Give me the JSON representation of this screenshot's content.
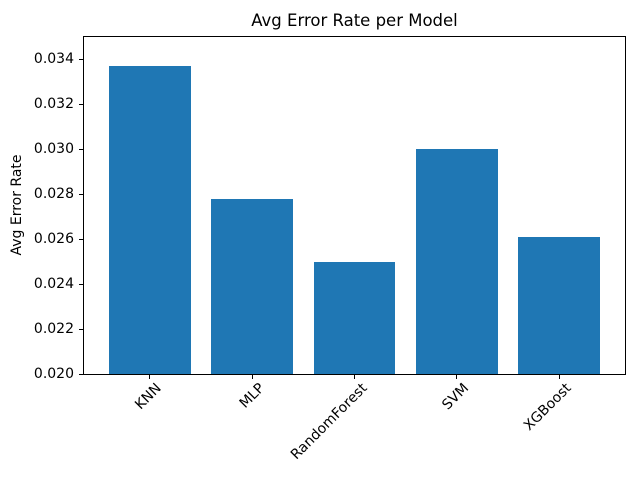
{
  "window": {
    "background_color": "#ffffff"
  },
  "chart_data": {
    "type": "bar",
    "title": "Avg Error Rate per Model",
    "xlabel": "",
    "ylabel": "Avg Error Rate",
    "categories": [
      "KNN",
      "MLP",
      "RandomForest",
      "SVM",
      "XGBoost"
    ],
    "values": [
      0.0337,
      0.0278,
      0.025,
      0.03,
      0.0261
    ],
    "ylim": [
      0.02,
      0.035
    ],
    "yticks": [
      0.02,
      0.022,
      0.024,
      0.026,
      0.028,
      0.03,
      0.032,
      0.034
    ],
    "ytick_label_decimals": 3,
    "x_tick_rotation_deg": 45,
    "bar_color": "#1f77b4",
    "axis_color": "#000000",
    "text_color": "#000000",
    "grid": false,
    "legend_position": "none"
  }
}
